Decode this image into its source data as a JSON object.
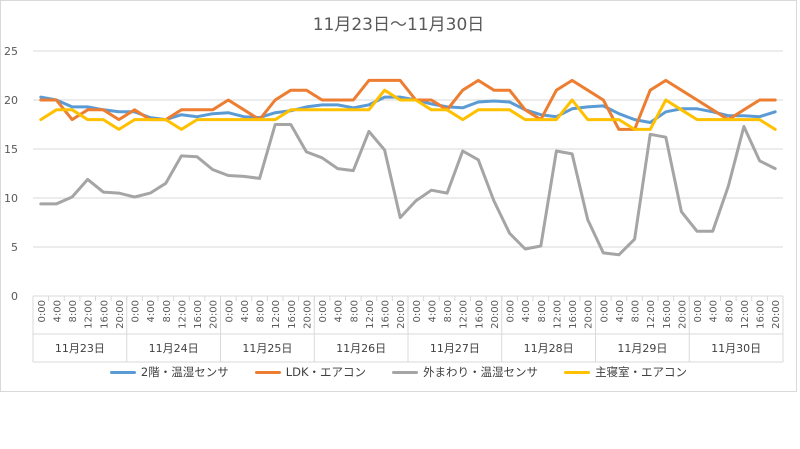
{
  "chart_data": {
    "type": "line",
    "title": "11月23日～11月30日",
    "xlabel": "",
    "ylabel": "",
    "ylim": [
      0,
      25
    ],
    "yticks": [
      0,
      5,
      10,
      15,
      20,
      25
    ],
    "grid": true,
    "legend_position": "bottom",
    "time_labels": [
      "0:00",
      "4:00",
      "8:00",
      "12:00",
      "16:00",
      "20:00"
    ],
    "day_labels": [
      "11月23日",
      "11月24日",
      "11月25日",
      "11月26日",
      "11月27日",
      "11月28日",
      "11月29日",
      "11月30日"
    ],
    "series": [
      {
        "name": "2階・温湿センサ",
        "color": "#5b9bd5",
        "values": [
          20.3,
          20.0,
          19.3,
          19.3,
          19.0,
          18.8,
          18.8,
          18.2,
          18.0,
          18.5,
          18.3,
          18.6,
          18.7,
          18.3,
          18.2,
          18.7,
          18.9,
          19.3,
          19.5,
          19.5,
          19.2,
          19.5,
          20.3,
          20.3,
          20.0,
          19.6,
          19.3,
          19.2,
          19.8,
          19.9,
          19.8,
          19.0,
          18.5,
          18.3,
          19.1,
          19.3,
          19.4,
          18.6,
          18.0,
          17.7,
          18.8,
          19.1,
          19.1,
          18.8,
          18.4,
          18.4,
          18.3,
          18.8
        ]
      },
      {
        "name": "LDK・エアコン",
        "color": "#ed7d31",
        "values": [
          20.0,
          20.0,
          18.0,
          19.0,
          19.0,
          18.0,
          19.0,
          18.0,
          18.0,
          19.0,
          19.0,
          19.0,
          20.0,
          19.0,
          18.0,
          20.0,
          21.0,
          21.0,
          20.0,
          20.0,
          20.0,
          22.0,
          22.0,
          22.0,
          20.0,
          20.0,
          19.0,
          21.0,
          22.0,
          21.0,
          21.0,
          19.0,
          18.0,
          21.0,
          22.0,
          21.0,
          20.0,
          17.0,
          17.0,
          21.0,
          22.0,
          21.0,
          20.0,
          19.0,
          18.0,
          19.0,
          20.0,
          20.0
        ]
      },
      {
        "name": "外まわり・温湿センサ",
        "color": "#a5a5a5",
        "values": [
          9.4,
          9.4,
          10.1,
          11.9,
          10.6,
          10.5,
          10.1,
          10.5,
          11.5,
          14.3,
          14.2,
          12.9,
          12.3,
          12.2,
          12.0,
          17.5,
          17.5,
          14.7,
          14.1,
          13.0,
          12.8,
          16.8,
          14.9,
          8.0,
          9.7,
          10.8,
          10.5,
          14.8,
          13.9,
          9.7,
          6.4,
          4.8,
          5.1,
          14.8,
          14.5,
          7.8,
          4.4,
          4.2,
          5.8,
          16.5,
          16.2,
          8.6,
          6.6,
          6.6,
          11.2,
          17.3,
          13.8,
          13.0
        ]
      },
      {
        "name": "主寝室・エアコン",
        "color": "#ffc000",
        "values": [
          18.0,
          19.0,
          19.0,
          18.0,
          18.0,
          17.0,
          18.0,
          18.0,
          18.0,
          17.0,
          18.0,
          18.0,
          18.0,
          18.0,
          18.0,
          18.0,
          19.0,
          19.0,
          19.0,
          19.0,
          19.0,
          19.0,
          21.0,
          20.0,
          20.0,
          19.0,
          19.0,
          18.0,
          19.0,
          19.0,
          19.0,
          18.0,
          18.0,
          18.0,
          20.0,
          18.0,
          18.0,
          18.0,
          17.0,
          17.0,
          20.0,
          19.0,
          18.0,
          18.0,
          18.0,
          18.0,
          18.0,
          17.0
        ]
      }
    ]
  }
}
